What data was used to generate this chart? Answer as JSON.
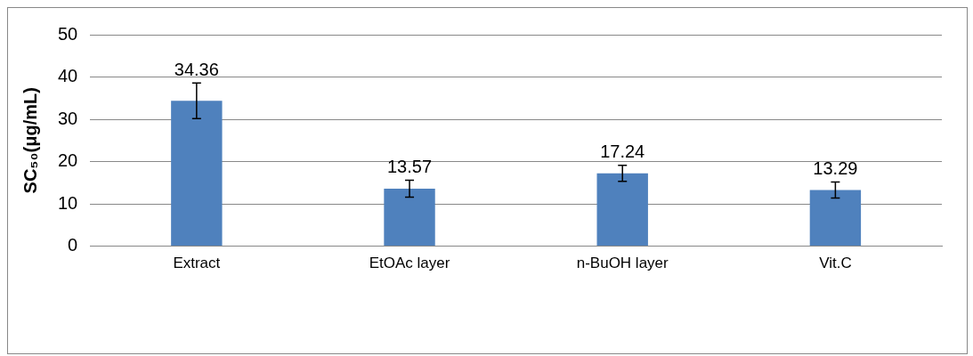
{
  "chart_data": {
    "type": "bar",
    "ylabel": "SC₅₀(μg/mL)",
    "categories": [
      "Extract",
      "EtOAc layer",
      "n-BuOH layer",
      "Vit.C"
    ],
    "values": [
      34.36,
      13.57,
      17.24,
      13.29
    ],
    "errors": [
      4.2,
      2,
      1.9,
      1.9
    ],
    "color": "#4f81bd",
    "ylim": [
      0,
      50
    ],
    "yticks": [
      0,
      10,
      20,
      30,
      40,
      50
    ],
    "grid": "y",
    "data_labels": true
  }
}
